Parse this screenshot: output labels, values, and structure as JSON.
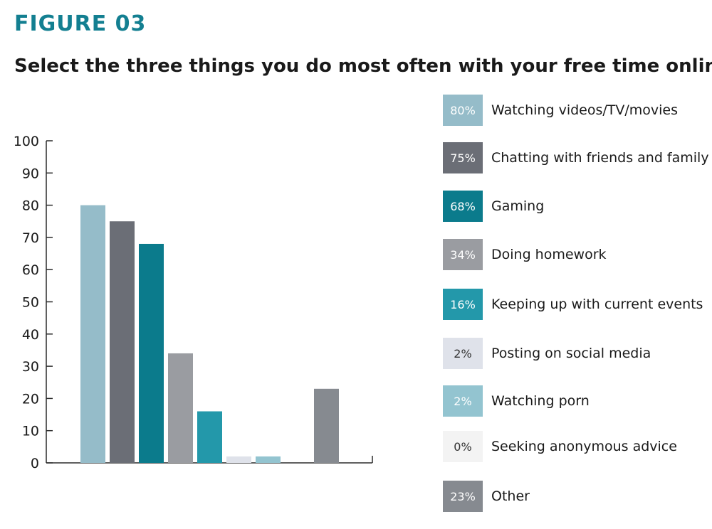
{
  "figure_label": "FIGURE 03",
  "colors": {
    "accent": "#137f91",
    "axis": "#2b2b2b",
    "tick_text": "#1a1a1a"
  },
  "chart_data": {
    "type": "bar",
    "title": "Select the three things you do most often with your free time online.",
    "ylim": [
      0,
      100
    ],
    "yticks": [
      0,
      10,
      20,
      30,
      40,
      50,
      60,
      70,
      80,
      90,
      100
    ],
    "legend_position": "right",
    "grid": false,
    "categories": [
      "Watching videos/TV/movies",
      "Chatting with friends and family",
      "Gaming",
      "Doing homework",
      "Keeping up with current events",
      "Posting on social media",
      "Watching porn",
      "Seeking anonymous advice",
      "Other"
    ],
    "values": [
      80,
      75,
      68,
      34,
      16,
      2,
      2,
      0,
      23
    ],
    "value_labels": [
      "80%",
      "75%",
      "68%",
      "34%",
      "16%",
      "2%",
      "2%",
      "0%",
      "23%"
    ],
    "bar_colors": [
      "#95bcc9",
      "#6b6e76",
      "#0b7b8c",
      "#9a9ca1",
      "#2398aa",
      "#dfe2ea",
      "#93c4d0",
      "#f3f3f3",
      "#868a90"
    ],
    "label_colors": [
      "#ffffff",
      "#ffffff",
      "#ffffff",
      "#ffffff",
      "#ffffff",
      "#333333",
      "#ffffff",
      "#333333",
      "#ffffff"
    ]
  }
}
